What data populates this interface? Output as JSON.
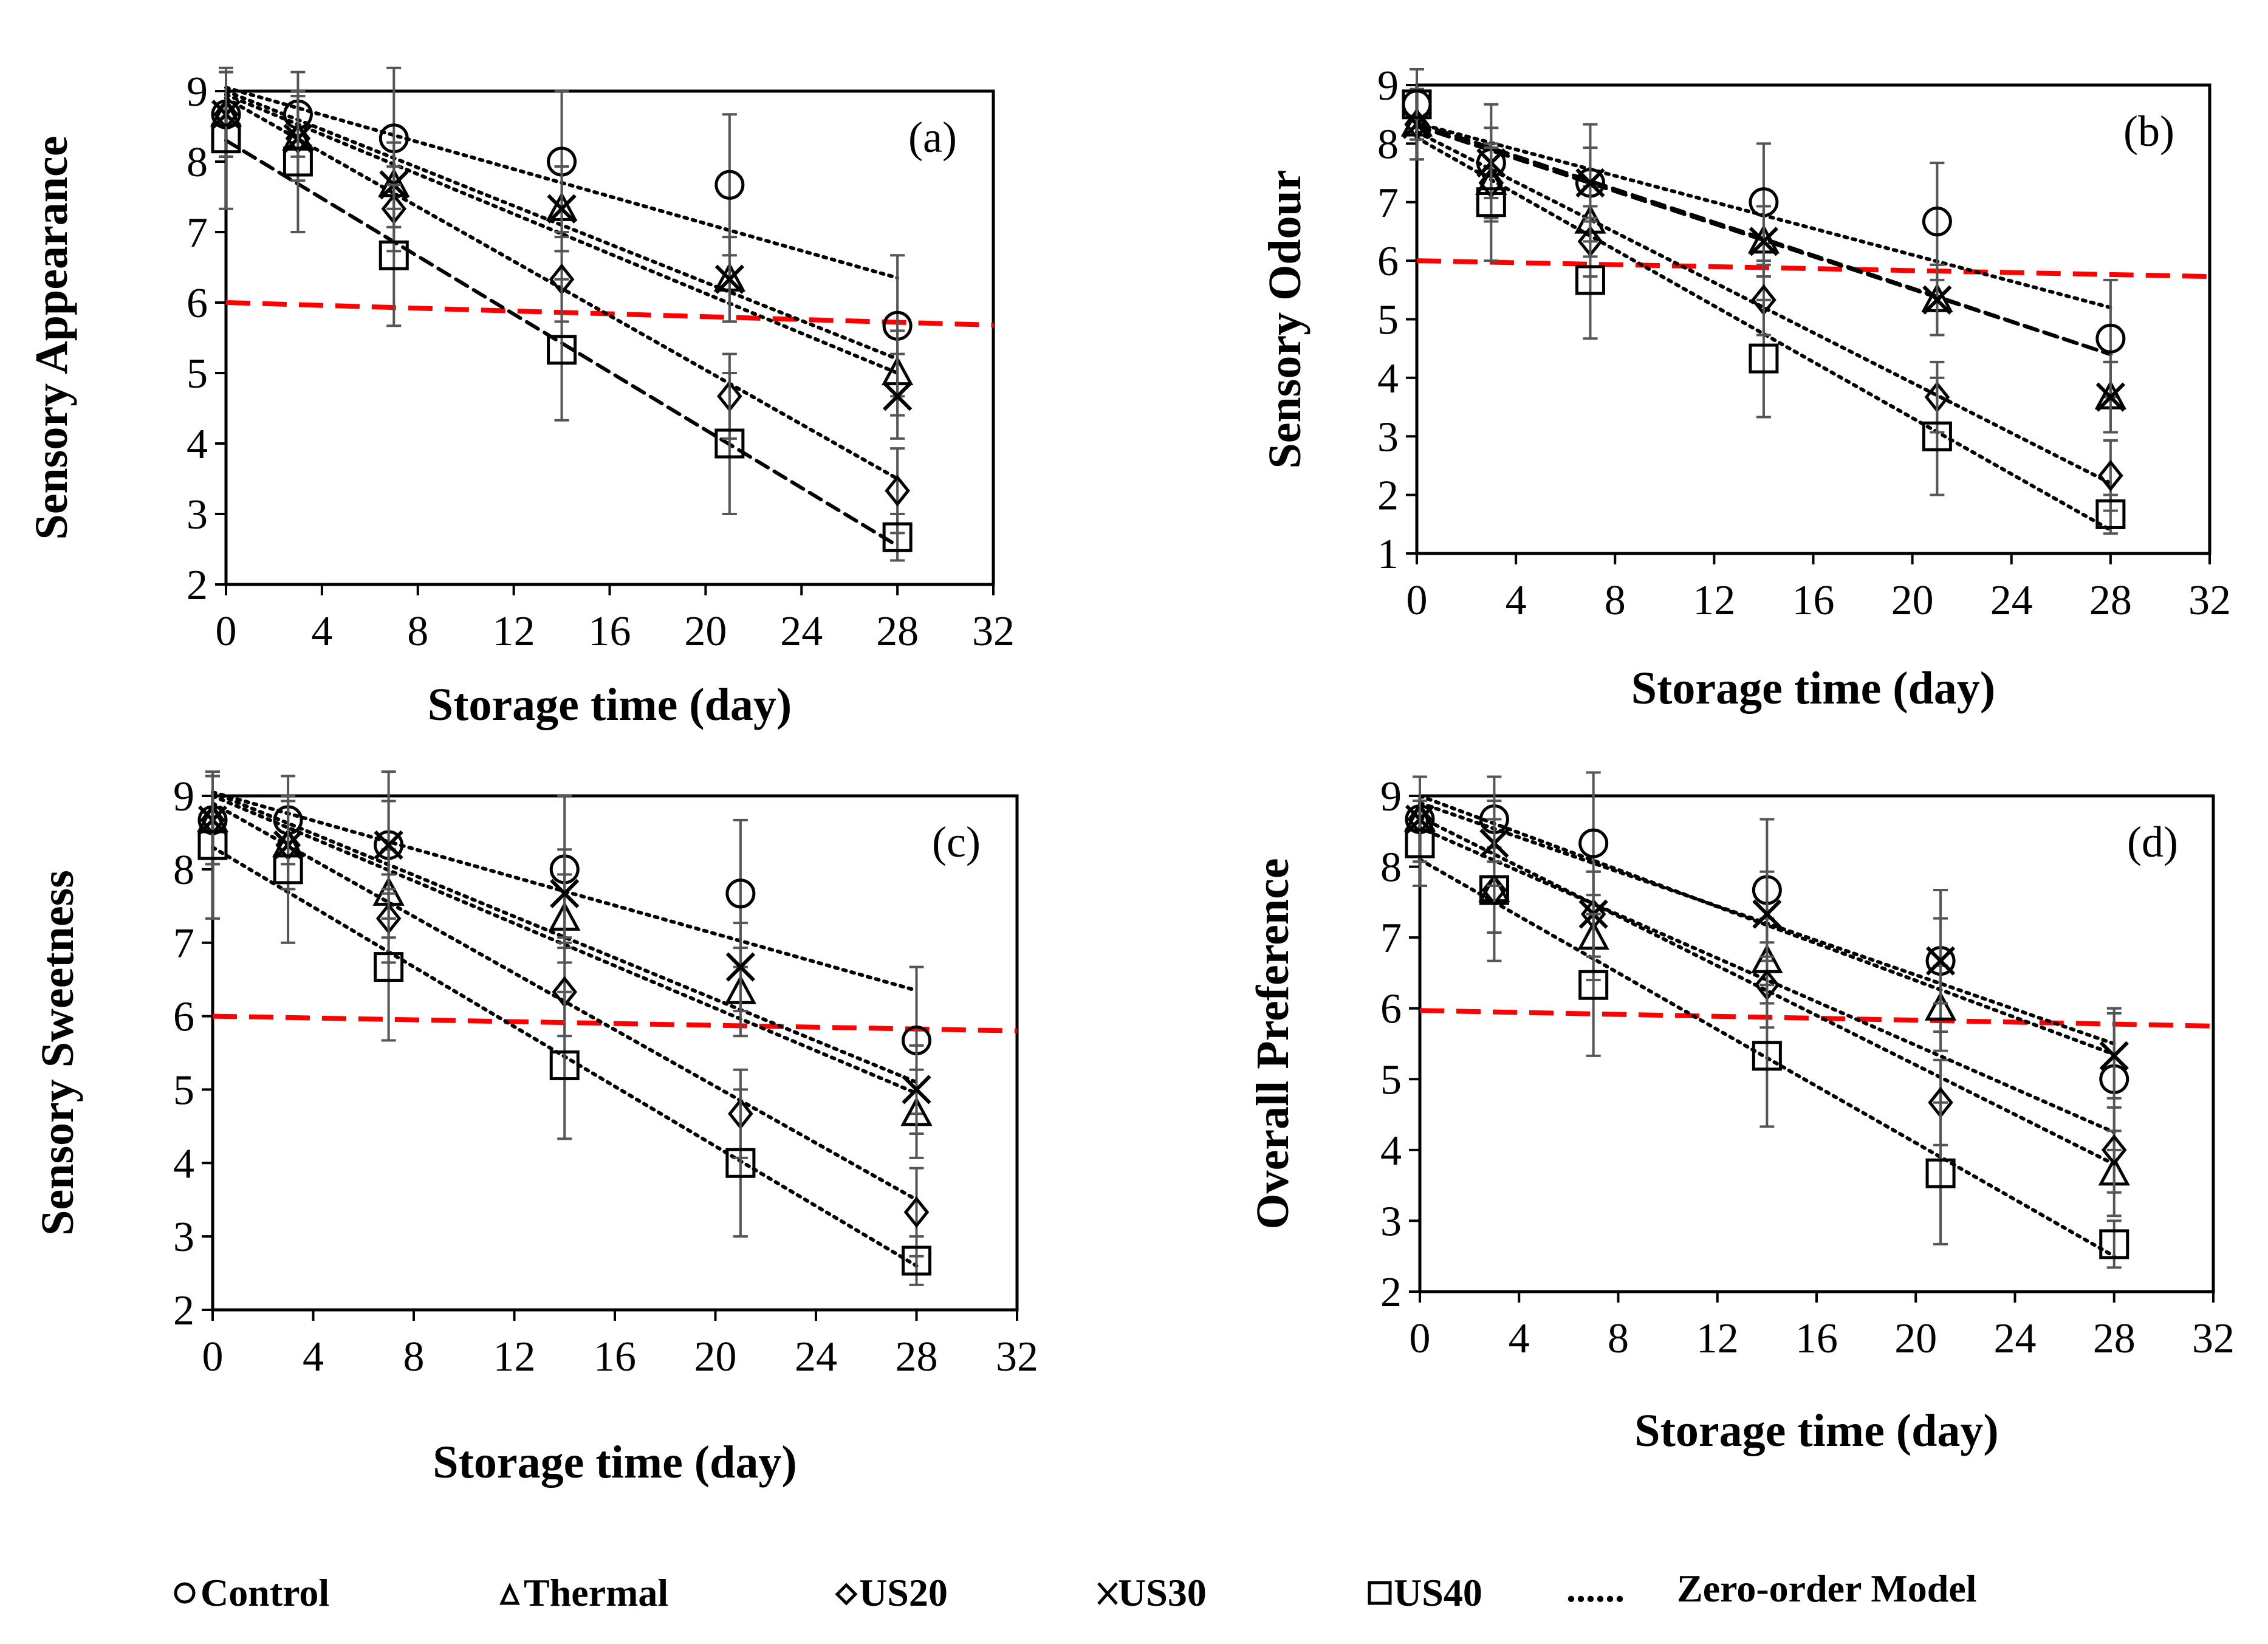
{
  "chart_data": [
    {
      "type": "scatter",
      "panel": "(a)",
      "ylabel": "Sensory Appearance",
      "xlabel": "Storage time (day)",
      "xlim": [
        0,
        32
      ],
      "ylim": [
        2,
        9
      ],
      "xticks": [
        0,
        4,
        8,
        12,
        16,
        20,
        24,
        28,
        32
      ],
      "yticks": [
        2,
        3,
        4,
        5,
        6,
        7,
        8,
        9
      ],
      "x": [
        0,
        3,
        7,
        14,
        21,
        28
      ],
      "threshold": {
        "value_start": 6.0,
        "value_end": 5.68,
        "color": "#ff0000"
      },
      "series": [
        {
          "name": "Control",
          "marker": "circle",
          "values": [
            8.67,
            8.67,
            8.33,
            8.0,
            7.67,
            5.67
          ],
          "errors": [
            0.6,
            0.6,
            1.0,
            1.0,
            1.0,
            1.0
          ],
          "fit": [
            9.05,
            6.35
          ],
          "fit_style": "dotted"
        },
        {
          "name": "Thermal",
          "marker": "triangle",
          "values": [
            8.67,
            8.33,
            7.67,
            7.33,
            6.33,
            5.0
          ],
          "errors": [
            0.6,
            0.6,
            0.6,
            0.6,
            0.6,
            0.6
          ],
          "fit": [
            9.0,
            5.2
          ],
          "fit_style": "dotted"
        },
        {
          "name": "US20",
          "marker": "diamond",
          "values": [
            8.67,
            8.33,
            7.33,
            6.33,
            4.67,
            3.33
          ],
          "errors": [
            0.6,
            0.6,
            0.6,
            0.6,
            0.6,
            0.6
          ],
          "fit": [
            8.9,
            3.5
          ],
          "fit_style": "dotted"
        },
        {
          "name": "US30",
          "marker": "cross",
          "values": [
            8.67,
            8.33,
            7.67,
            7.33,
            6.33,
            4.67
          ],
          "errors": [
            0.6,
            0.6,
            0.6,
            0.6,
            0.6,
            0.6
          ],
          "fit": [
            8.95,
            5.0
          ],
          "fit_style": "dotted"
        },
        {
          "name": "US40",
          "marker": "square",
          "values": [
            8.33,
            8.0,
            6.67,
            5.33,
            4.0,
            2.67
          ],
          "errors": [
            1.0,
            1.0,
            1.0,
            1.0,
            1.0,
            0.33
          ],
          "fit": [
            8.3,
            2.55
          ],
          "fit_style": "dashed"
        }
      ]
    },
    {
      "type": "scatter",
      "panel": "(b)",
      "ylabel": "Sensory Odour",
      "xlabel": "Storage time (day)",
      "xlim": [
        0,
        32
      ],
      "ylim": [
        1,
        9
      ],
      "xticks": [
        0,
        4,
        8,
        12,
        16,
        20,
        24,
        28,
        32
      ],
      "yticks": [
        1,
        2,
        3,
        4,
        5,
        6,
        7,
        8,
        9
      ],
      "x": [
        0,
        3,
        7,
        14,
        21,
        28
      ],
      "threshold": {
        "value_start": 6.0,
        "value_end": 5.73,
        "color": "#ff0000"
      },
      "series": [
        {
          "name": "Control",
          "marker": "circle",
          "values": [
            8.67,
            7.67,
            7.33,
            7.0,
            6.67,
            4.67
          ],
          "errors": [
            0.6,
            1.0,
            1.0,
            1.0,
            1.0,
            1.0
          ],
          "fit": [
            8.35,
            5.2
          ],
          "fit_style": "dotted"
        },
        {
          "name": "Thermal",
          "marker": "triangle",
          "values": [
            8.33,
            7.33,
            6.67,
            6.33,
            5.33,
            3.67
          ],
          "errors": [
            0.6,
            0.6,
            0.6,
            0.6,
            0.6,
            0.6
          ],
          "fit": [
            8.3,
            4.4
          ],
          "fit_style": "dashed"
        },
        {
          "name": "US20",
          "marker": "diamond",
          "values": [
            8.33,
            7.33,
            6.33,
            5.33,
            3.67,
            2.33
          ],
          "errors": [
            0.6,
            0.6,
            0.6,
            0.6,
            0.6,
            0.6
          ],
          "fit": [
            8.2,
            2.2
          ],
          "fit_style": "dotted"
        },
        {
          "name": "US30",
          "marker": "cross",
          "values": [
            8.33,
            7.67,
            7.33,
            6.33,
            5.33,
            3.67
          ],
          "errors": [
            0.6,
            0.6,
            0.6,
            0.6,
            0.6,
            0.6
          ],
          "fit": [
            8.35,
            4.4
          ],
          "fit_style": "dashed"
        },
        {
          "name": "US40",
          "marker": "square",
          "values": [
            8.67,
            7.0,
            5.67,
            4.33,
            3.0,
            1.67
          ],
          "errors": [
            0.6,
            1.0,
            1.0,
            1.0,
            1.0,
            0.33
          ],
          "fit": [
            8.1,
            1.4
          ],
          "fit_style": "dotted"
        }
      ]
    },
    {
      "type": "scatter",
      "panel": "(c)",
      "ylabel": "Sensory Sweetness",
      "xlabel": "Storage time (day)",
      "xlim": [
        0,
        32
      ],
      "ylim": [
        2,
        9
      ],
      "xticks": [
        0,
        4,
        8,
        12,
        16,
        20,
        24,
        28,
        32
      ],
      "yticks": [
        2,
        3,
        4,
        5,
        6,
        7,
        8,
        9
      ],
      "x": [
        0,
        3,
        7,
        14,
        21,
        28
      ],
      "threshold": {
        "value_start": 6.0,
        "value_end": 5.8,
        "color": "#ff0000"
      },
      "series": [
        {
          "name": "Control",
          "marker": "circle",
          "values": [
            8.67,
            8.67,
            8.33,
            8.0,
            7.67,
            5.67
          ],
          "errors": [
            0.6,
            0.6,
            1.0,
            1.0,
            1.0,
            1.0
          ],
          "fit": [
            9.05,
            6.35
          ],
          "fit_style": "dotted"
        },
        {
          "name": "Thermal",
          "marker": "triangle",
          "values": [
            8.67,
            8.33,
            7.67,
            7.33,
            6.33,
            4.67
          ],
          "errors": [
            0.6,
            0.6,
            0.6,
            0.6,
            0.6,
            0.6
          ],
          "fit": [
            9.0,
            4.95
          ],
          "fit_style": "dotted"
        },
        {
          "name": "US20",
          "marker": "diamond",
          "values": [
            8.67,
            8.33,
            7.33,
            6.33,
            4.67,
            3.33
          ],
          "errors": [
            0.6,
            0.6,
            0.6,
            0.6,
            0.6,
            0.6
          ],
          "fit": [
            8.9,
            3.5
          ],
          "fit_style": "dotted"
        },
        {
          "name": "US30",
          "marker": "cross",
          "values": [
            8.67,
            8.33,
            8.33,
            7.67,
            6.67,
            5.0
          ],
          "errors": [
            0.6,
            0.6,
            0.6,
            0.6,
            0.6,
            0.6
          ],
          "fit": [
            9.05,
            5.1
          ],
          "fit_style": "dotted"
        },
        {
          "name": "US40",
          "marker": "square",
          "values": [
            8.33,
            8.0,
            6.67,
            5.33,
            4.0,
            2.67
          ],
          "errors": [
            1.0,
            1.0,
            1.0,
            1.0,
            1.0,
            0.33
          ],
          "fit": [
            8.3,
            2.6
          ],
          "fit_style": "dotted"
        }
      ]
    },
    {
      "type": "scatter",
      "panel": "(d)",
      "ylabel": "Overall Preference",
      "xlabel": "Storage time (day)",
      "xlim": [
        0,
        32
      ],
      "ylim": [
        2,
        9
      ],
      "xticks": [
        0,
        4,
        8,
        12,
        16,
        20,
        24,
        28,
        32
      ],
      "yticks": [
        2,
        3,
        4,
        5,
        6,
        7,
        8,
        9
      ],
      "x": [
        0,
        3,
        7,
        14,
        21,
        28
      ],
      "threshold": {
        "value_start": 5.97,
        "value_end": 5.75,
        "color": "#ff0000"
      },
      "series": [
        {
          "name": "Control",
          "marker": "circle",
          "values": [
            8.67,
            8.67,
            8.33,
            7.67,
            6.67,
            5.0
          ],
          "errors": [
            0.6,
            0.6,
            1.0,
            1.0,
            1.0,
            1.0
          ],
          "fit": [
            9.0,
            5.35
          ],
          "fit_style": "dotted"
        },
        {
          "name": "Thermal",
          "marker": "triangle",
          "values": [
            8.67,
            7.67,
            7.0,
            6.67,
            6.0,
            3.67
          ],
          "errors": [
            0.6,
            0.6,
            0.6,
            0.6,
            0.6,
            0.6
          ],
          "fit": [
            8.55,
            4.25
          ],
          "fit_style": "dotted"
        },
        {
          "name": "US20",
          "marker": "diamond",
          "values": [
            8.67,
            7.67,
            7.33,
            6.33,
            4.67,
            4.0
          ],
          "errors": [
            0.6,
            0.6,
            0.6,
            0.6,
            0.6,
            0.6
          ],
          "fit": [
            8.7,
            3.8
          ],
          "fit_style": "dotted"
        },
        {
          "name": "US30",
          "marker": "cross",
          "values": [
            8.67,
            8.33,
            7.33,
            7.33,
            6.67,
            5.33
          ],
          "errors": [
            0.6,
            0.6,
            0.6,
            0.6,
            0.6,
            0.6
          ],
          "fit": [
            8.9,
            5.5
          ],
          "fit_style": "dotted"
        },
        {
          "name": "US40",
          "marker": "square",
          "values": [
            8.33,
            7.67,
            6.33,
            5.33,
            3.67,
            2.67
          ],
          "errors": [
            0.6,
            1.0,
            1.0,
            1.0,
            1.0,
            0.33
          ],
          "fit": [
            8.1,
            2.5
          ],
          "fit_style": "dotted"
        }
      ]
    }
  ],
  "legend": {
    "items": [
      {
        "marker": "circle",
        "label": "Control"
      },
      {
        "marker": "triangle",
        "label": "Thermal"
      },
      {
        "marker": "diamond",
        "label": "US20"
      },
      {
        "marker": "cross",
        "label": "US30"
      },
      {
        "marker": "square",
        "label": "US40"
      }
    ],
    "model_symbol": "......",
    "model_label": "Zero-order Model"
  }
}
